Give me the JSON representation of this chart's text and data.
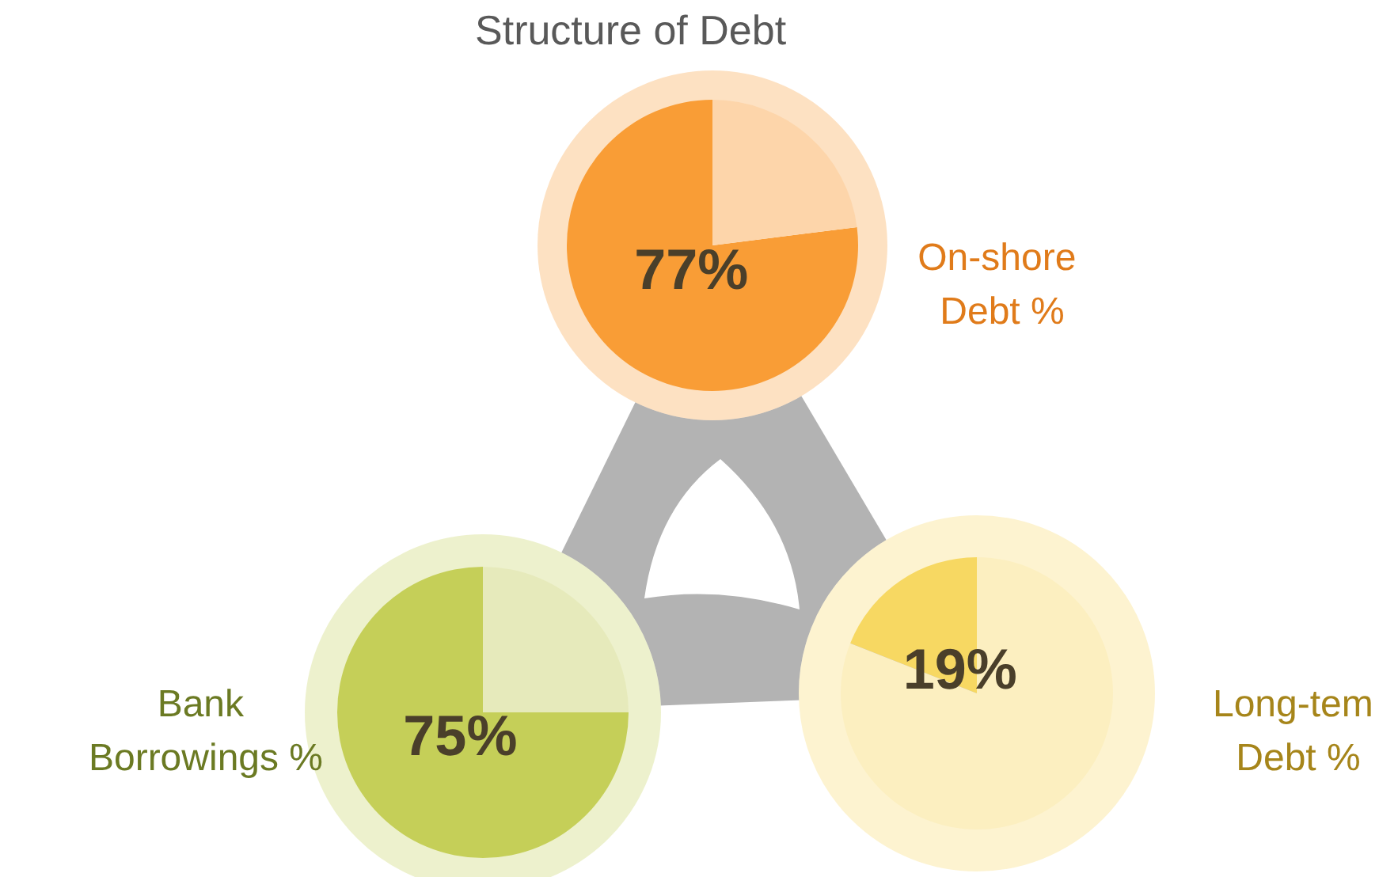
{
  "chart_data": [
    {
      "type": "pie",
      "title": "Structure of Debt",
      "categories": [
        null,
        null
      ],
      "values": [
        77,
        23
      ],
      "colors": [
        "#f99d36",
        "#fdd5aa"
      ],
      "value_labels": [
        "77%",
        null
      ],
      "annotations": [
        "On-shore Debt %"
      ]
    },
    {
      "type": "pie",
      "categories": [
        null,
        null
      ],
      "values": [
        75,
        25
      ],
      "colors": [
        "#c5cf58",
        "#e6eabb"
      ],
      "value_labels": [
        "75%",
        null
      ],
      "annotations": [
        "Bank Borrowings %"
      ]
    },
    {
      "type": "pie",
      "categories": [
        null,
        null
      ],
      "values": [
        19,
        81
      ],
      "colors": [
        "#f7d862",
        "#fcefc0"
      ],
      "value_labels": [
        "19%",
        null
      ],
      "annotations": [
        "Long-tem Debt %"
      ]
    }
  ]
}
